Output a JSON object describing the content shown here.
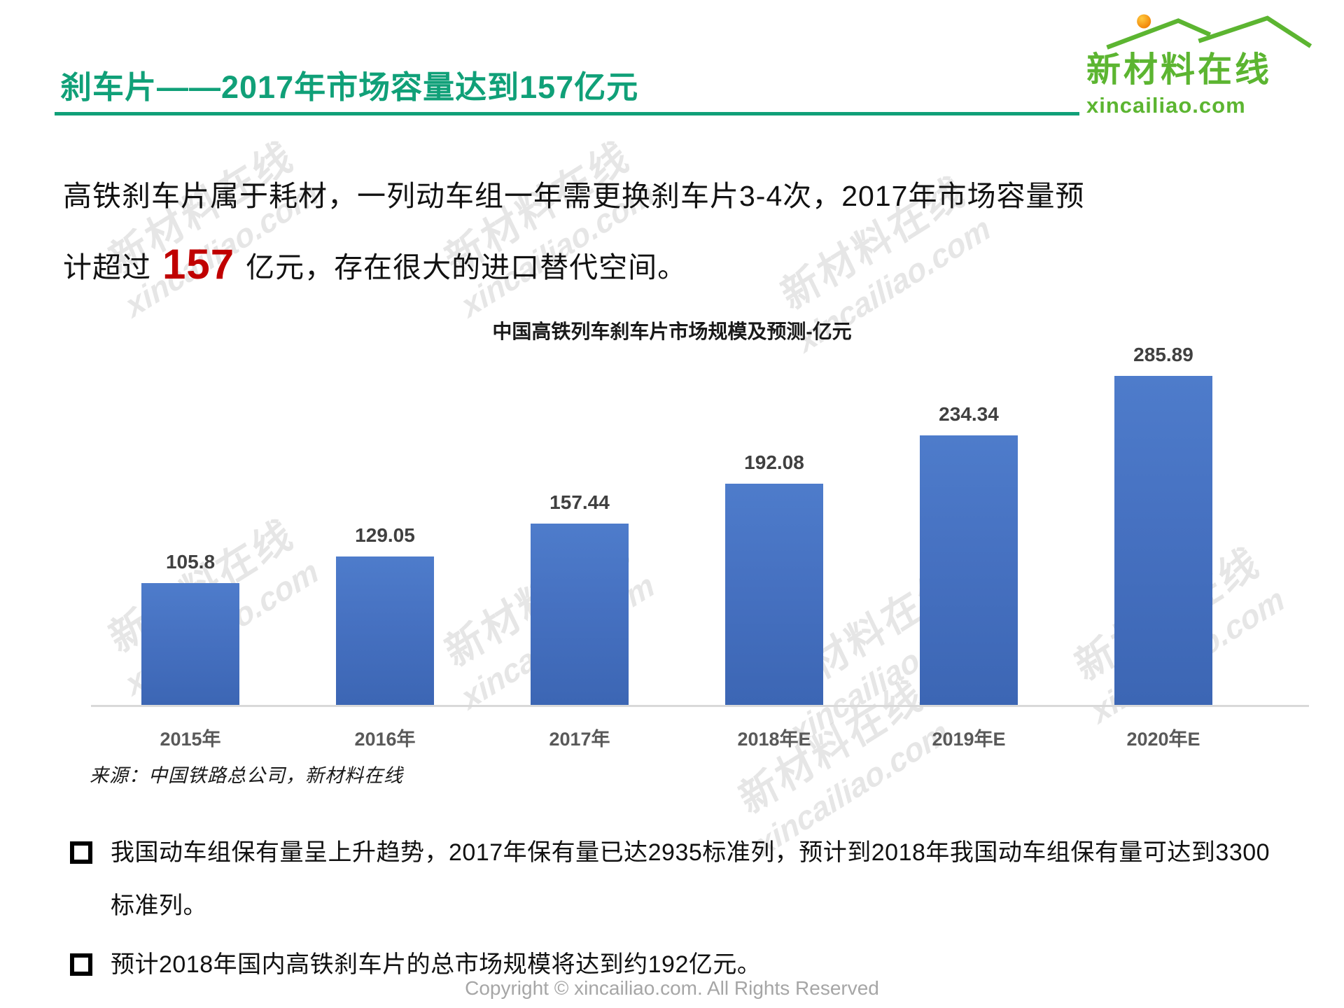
{
  "header": {
    "title": "刹车片——2017年市场容量达到157亿元",
    "logo": {
      "cn": "新材料在线",
      "domain": "xincailiao.com",
      "brand_green": "#5CB531",
      "sun_orange": "#F08300"
    }
  },
  "intro": {
    "line1": "高铁刹车片属于耗材，一列动车组一年需更换刹车片3-4次，2017年市场容量预",
    "line2_prefix": "计超过",
    "highlight": "157",
    "line2_suffix": "亿元，存在很大的进口替代空间。",
    "highlight_color": "#C00000"
  },
  "chart_data": {
    "type": "bar",
    "title": "中国高铁列车刹车片市场规模及预测-亿元",
    "categories": [
      "2015年",
      "2016年",
      "2017年",
      "2018年E",
      "2019年E",
      "2020年E"
    ],
    "values": [
      105.8,
      129.05,
      157.44,
      192.08,
      234.34,
      285.89
    ],
    "unit": "亿元",
    "ylim": [
      0,
      300
    ],
    "grid": false,
    "legend": false,
    "bar_color_top": "#4E7CCB",
    "bar_color_bottom": "#3C66B4",
    "value_label_color": "#404040",
    "category_label_color": "#595959",
    "source": "来源：中国铁路总公司，新材料在线"
  },
  "bullets": [
    "我国动车组保有量呈上升趋势，2017年保有量已达2935标准列，预计到2018年我国动车组保有量可达到3300标准列。",
    "预计2018年国内高铁刹车片的总市场规模将达到约192亿元。"
  ],
  "footer": "Copyright © xincailiao.com. All Rights Reserved",
  "watermark": {
    "cn": "新材料在线",
    "domain": "xincailiao.com"
  }
}
